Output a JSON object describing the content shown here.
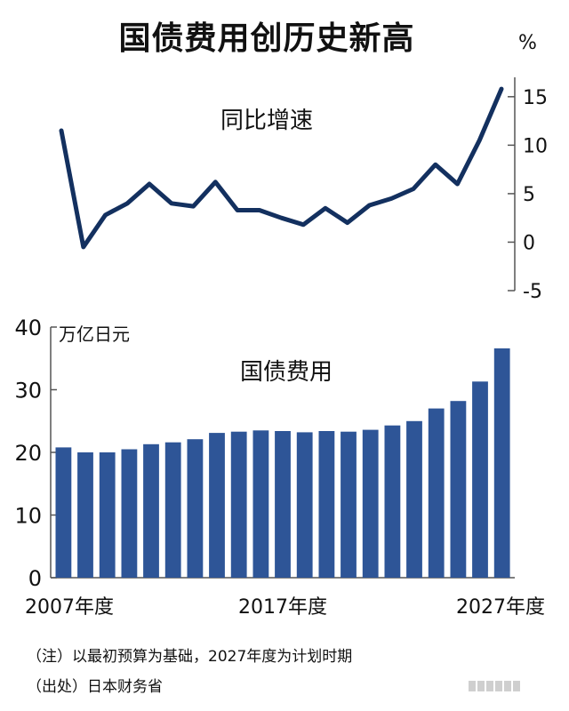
{
  "title": "国债费用创历史新高",
  "chart_data": [
    {
      "type": "line",
      "title": "同比增速",
      "unit": "%",
      "ylim": [
        -5,
        17
      ],
      "yticks": [
        -5,
        0,
        5,
        10,
        15
      ],
      "x": [
        2007,
        2008,
        2009,
        2010,
        2011,
        2012,
        2013,
        2014,
        2015,
        2016,
        2017,
        2018,
        2019,
        2020,
        2021,
        2022,
        2023,
        2024,
        2025,
        2026,
        2027
      ],
      "values": [
        11.5,
        -0.5,
        2.8,
        4.0,
        6.0,
        4.0,
        3.7,
        6.2,
        3.3,
        3.3,
        2.5,
        1.8,
        3.5,
        2.0,
        3.8,
        4.5,
        5.5,
        8.0,
        6.0,
        10.5,
        15.8
      ],
      "color": "#13305f"
    },
    {
      "type": "bar",
      "title": "国债费用",
      "unit": "万亿日元",
      "ylim": [
        0,
        40
      ],
      "yticks": [
        0,
        10,
        20,
        30,
        40
      ],
      "x": [
        2007,
        2008,
        2009,
        2010,
        2011,
        2012,
        2013,
        2014,
        2015,
        2016,
        2017,
        2018,
        2019,
        2020,
        2021,
        2022,
        2023,
        2024,
        2025,
        2026,
        2027
      ],
      "xtick_labels": [
        "2007年度",
        "2017年度",
        "2027年度"
      ],
      "values": [
        20.8,
        20.0,
        20.0,
        20.5,
        21.3,
        21.6,
        22.1,
        23.1,
        23.3,
        23.5,
        23.4,
        23.2,
        23.4,
        23.3,
        23.6,
        24.3,
        25.0,
        27.0,
        28.2,
        31.3,
        36.6
      ],
      "color": "#2e5597"
    }
  ],
  "footnotes": {
    "note": "（注）以最初预算为基础，2027年度为计划时期",
    "source": "（出处）日本财务省"
  }
}
